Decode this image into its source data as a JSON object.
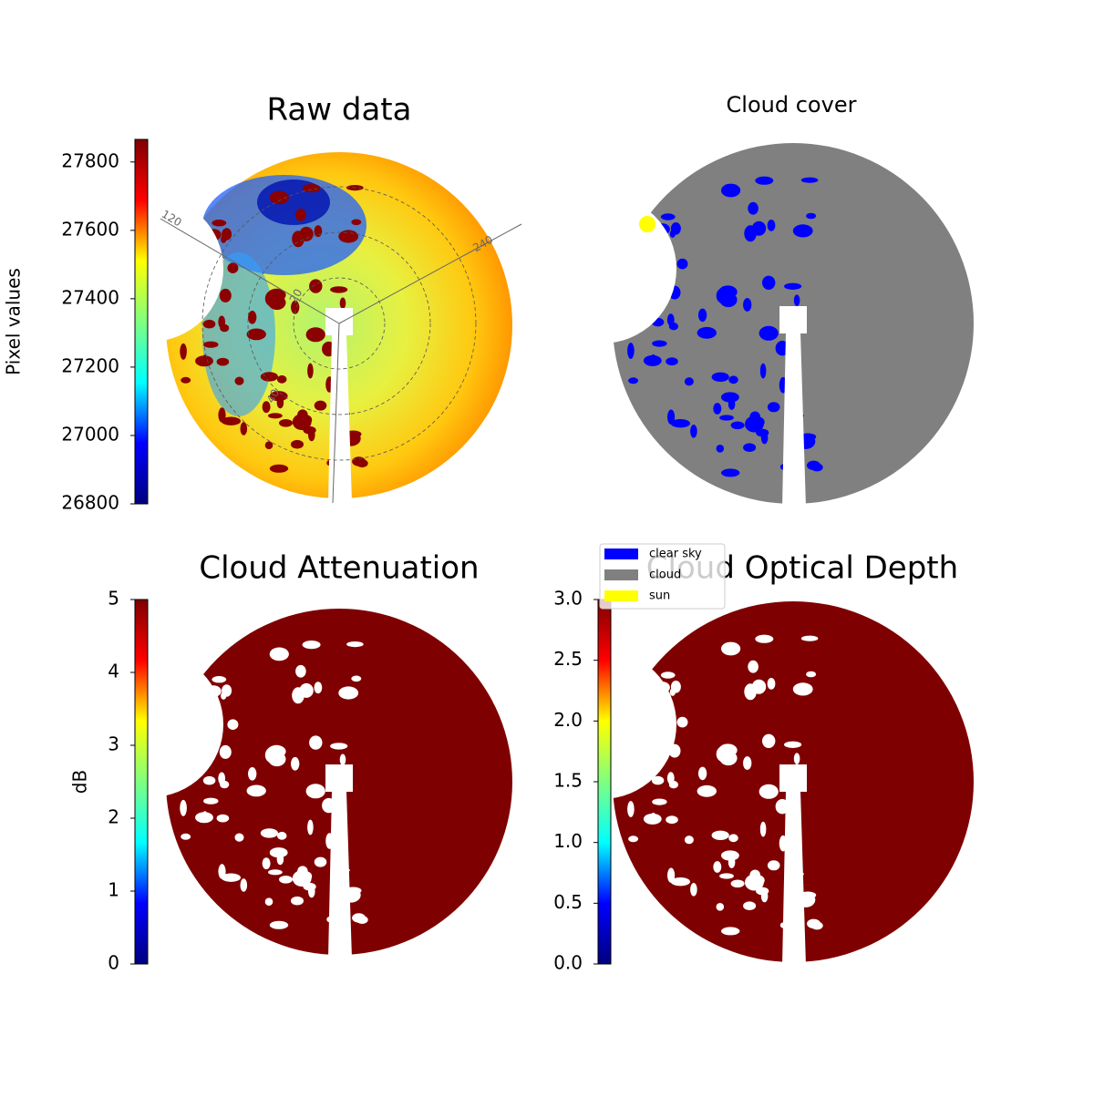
{
  "chart_data": [
    {
      "type": "image",
      "title": "Raw data",
      "colorbar": {
        "label": "Pixel values",
        "lim": [
          26800,
          27866
        ],
        "ticks": [
          26800,
          27000,
          27200,
          27400,
          27600,
          27800
        ],
        "colormap": [
          "#00007f",
          "#0000ff",
          "#00ffff",
          "#7fff7f",
          "#ffff00",
          "#ff0000",
          "#7f0000"
        ]
      },
      "polar_labels": [
        "120",
        "240",
        "20",
        "40"
      ]
    },
    {
      "type": "image",
      "title": "Cloud cover",
      "legend": [
        {
          "name": "clear sky",
          "color": "#0000ff"
        },
        {
          "name": "cloud",
          "color": "#808080"
        },
        {
          "name": "sun",
          "color": "#ffff00"
        }
      ]
    },
    {
      "type": "image",
      "title": "Cloud Attenuation",
      "colorbar": {
        "label": "dB",
        "lim": [
          0,
          5
        ],
        "ticks": [
          0,
          1,
          2,
          3,
          4,
          5
        ],
        "colormap": [
          "#00007f",
          "#0000ff",
          "#00ffff",
          "#7fff7f",
          "#ffff00",
          "#ff0000",
          "#7f0000"
        ]
      }
    },
    {
      "type": "image",
      "title": "Cloud Optical Depth",
      "colorbar": {
        "lim": [
          0,
          3
        ],
        "ticks": [
          {
            "value": 0,
            "label": "0.0"
          },
          {
            "value": 0.5,
            "label": "0.5"
          },
          {
            "value": 1,
            "label": "1.0"
          },
          {
            "value": 1.5,
            "label": "1.5"
          },
          {
            "value": 2,
            "label": "2.0"
          },
          {
            "value": 2.5,
            "label": "2.5"
          },
          {
            "value": 3,
            "label": "3.0"
          }
        ],
        "colormap": [
          "#00007f",
          "#0000ff",
          "#00ffff",
          "#7fff7f",
          "#ffff00",
          "#ff0000",
          "#7f0000"
        ]
      }
    }
  ]
}
